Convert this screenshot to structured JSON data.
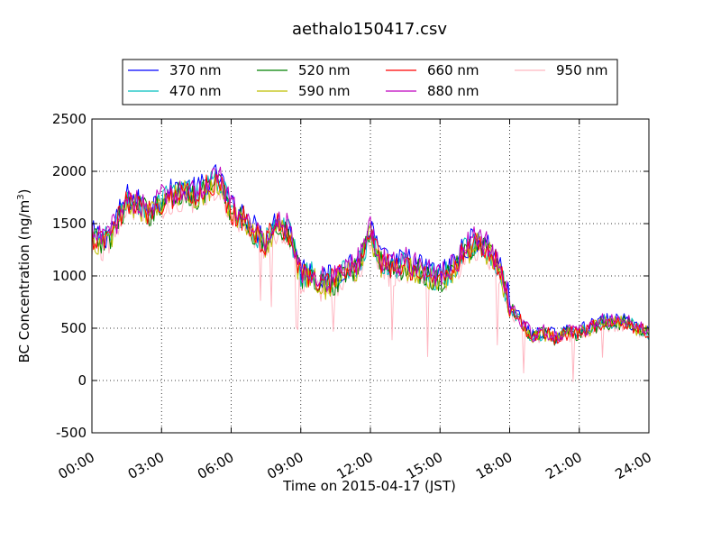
{
  "chart_data": {
    "type": "line",
    "title": "aethalo150417.csv",
    "xlabel": "Time on 2015-04-17 (JST)",
    "ylabel": "BC Concentration (ng/m",
    "ylabel_sup": "3",
    "ylabel_end": ")",
    "xlim": [
      "00:00",
      "24:00"
    ],
    "ylim": [
      -500,
      2500
    ],
    "grid": true,
    "legend_position": "top-center",
    "x_tick_labels": [
      "00:00",
      "03:00",
      "06:00",
      "09:00",
      "12:00",
      "15:00",
      "18:00",
      "21:00",
      "24:00"
    ],
    "y_tick_labels": [
      "-500",
      "0",
      "500",
      "1000",
      "1500",
      "2000",
      "2500"
    ],
    "y_ticks": [
      -500,
      0,
      500,
      1000,
      1500,
      2000,
      2500
    ],
    "base_profile": {
      "x": [
        "00:00",
        "00:30",
        "01:00",
        "01:30",
        "02:00",
        "02:30",
        "03:00",
        "03:30",
        "04:00",
        "04:30",
        "05:00",
        "05:30",
        "06:00",
        "06:30",
        "07:00",
        "07:30",
        "08:00",
        "08:30",
        "09:00",
        "09:30",
        "10:00",
        "10:30",
        "11:00",
        "11:30",
        "12:00",
        "12:30",
        "13:00",
        "13:30",
        "14:00",
        "14:30",
        "15:00",
        "15:30",
        "16:00",
        "16:30",
        "17:00",
        "17:30",
        "18:00",
        "18:30",
        "19:00",
        "19:30",
        "20:00",
        "20:30",
        "21:00",
        "21:30",
        "22:00",
        "22:30",
        "23:00",
        "23:30",
        "24:00"
      ],
      "y": [
        1350,
        1300,
        1450,
        1700,
        1650,
        1600,
        1700,
        1750,
        1800,
        1750,
        1850,
        1900,
        1600,
        1550,
        1400,
        1300,
        1500,
        1400,
        1000,
        1000,
        900,
        950,
        1050,
        1100,
        1400,
        1100,
        1050,
        1100,
        1050,
        1000,
        950,
        1050,
        1200,
        1300,
        1250,
        1100,
        700,
        550,
        400,
        450,
        400,
        450,
        450,
        500,
        550,
        550,
        550,
        500,
        450
      ]
    },
    "series": [
      {
        "name": "370 nm",
        "color": "#0000ff",
        "offset": 60
      },
      {
        "name": "470 nm",
        "color": "#00bfbf",
        "offset": 20
      },
      {
        "name": "520 nm",
        "color": "#008000",
        "offset": 0
      },
      {
        "name": "590 nm",
        "color": "#bfbf00",
        "offset": -10
      },
      {
        "name": "660 nm",
        "color": "#ff0000",
        "offset": 10
      },
      {
        "name": "880 nm",
        "color": "#bf00bf",
        "offset": 50
      },
      {
        "name": "950 nm",
        "color": "#ffb6c1",
        "offset": -40
      }
    ]
  }
}
